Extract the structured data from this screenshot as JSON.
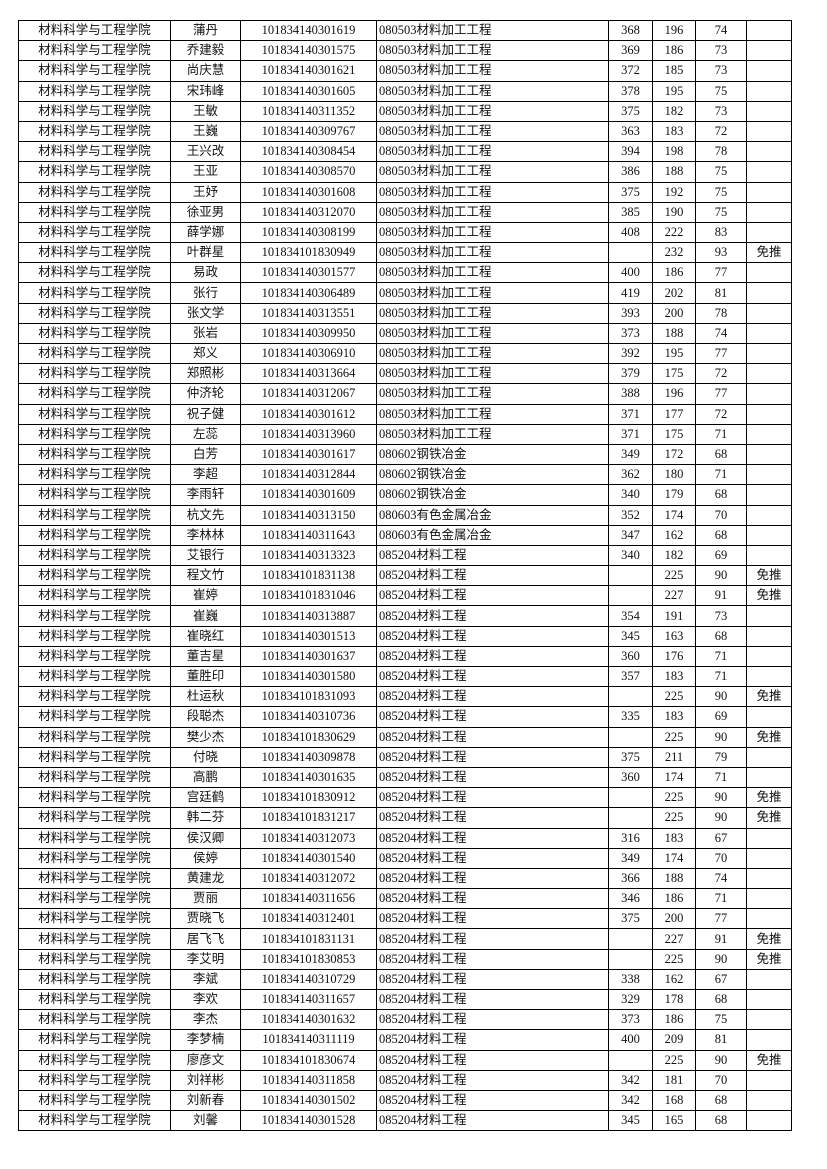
{
  "table": {
    "rows": [
      [
        "材料科学与工程学院",
        "蒲丹",
        "101834140301619",
        "080503材料加工工程",
        "368",
        "196",
        "74",
        ""
      ],
      [
        "材料科学与工程学院",
        "乔建毅",
        "101834140301575",
        "080503材料加工工程",
        "369",
        "186",
        "73",
        ""
      ],
      [
        "材料科学与工程学院",
        "尚庆慧",
        "101834140301621",
        "080503材料加工工程",
        "372",
        "185",
        "73",
        ""
      ],
      [
        "材料科学与工程学院",
        "宋玮峰",
        "101834140301605",
        "080503材料加工工程",
        "378",
        "195",
        "75",
        ""
      ],
      [
        "材料科学与工程学院",
        "王敏",
        "101834140311352",
        "080503材料加工工程",
        "375",
        "182",
        "73",
        ""
      ],
      [
        "材料科学与工程学院",
        "王巍",
        "101834140309767",
        "080503材料加工工程",
        "363",
        "183",
        "72",
        ""
      ],
      [
        "材料科学与工程学院",
        "王兴改",
        "101834140308454",
        "080503材料加工工程",
        "394",
        "198",
        "78",
        ""
      ],
      [
        "材料科学与工程学院",
        "王亚",
        "101834140308570",
        "080503材料加工工程",
        "386",
        "188",
        "75",
        ""
      ],
      [
        "材料科学与工程学院",
        "王妤",
        "101834140301608",
        "080503材料加工工程",
        "375",
        "192",
        "75",
        ""
      ],
      [
        "材料科学与工程学院",
        "徐亚男",
        "101834140312070",
        "080503材料加工工程",
        "385",
        "190",
        "75",
        ""
      ],
      [
        "材料科学与工程学院",
        "薛学娜",
        "101834140308199",
        "080503材料加工工程",
        "408",
        "222",
        "83",
        ""
      ],
      [
        "材料科学与工程学院",
        "叶群星",
        "101834101830949",
        "080503材料加工工程",
        "",
        "232",
        "93",
        "免推"
      ],
      [
        "材料科学与工程学院",
        "易政",
        "101834140301577",
        "080503材料加工工程",
        "400",
        "186",
        "77",
        ""
      ],
      [
        "材料科学与工程学院",
        "张行",
        "101834140306489",
        "080503材料加工工程",
        "419",
        "202",
        "81",
        ""
      ],
      [
        "材料科学与工程学院",
        "张文学",
        "101834140313551",
        "080503材料加工工程",
        "393",
        "200",
        "78",
        ""
      ],
      [
        "材料科学与工程学院",
        "张岩",
        "101834140309950",
        "080503材料加工工程",
        "373",
        "188",
        "74",
        ""
      ],
      [
        "材料科学与工程学院",
        "郑义",
        "101834140306910",
        "080503材料加工工程",
        "392",
        "195",
        "77",
        ""
      ],
      [
        "材料科学与工程学院",
        "郑照彬",
        "101834140313664",
        "080503材料加工工程",
        "379",
        "175",
        "72",
        ""
      ],
      [
        "材料科学与工程学院",
        "仲济轮",
        "101834140312067",
        "080503材料加工工程",
        "388",
        "196",
        "77",
        ""
      ],
      [
        "材料科学与工程学院",
        "祝子健",
        "101834140301612",
        "080503材料加工工程",
        "371",
        "177",
        "72",
        ""
      ],
      [
        "材料科学与工程学院",
        "左蕊",
        "101834140313960",
        "080503材料加工工程",
        "371",
        "175",
        "71",
        ""
      ],
      [
        "材料科学与工程学院",
        "白芳",
        "101834140301617",
        "080602钢铁冶金",
        "349",
        "172",
        "68",
        ""
      ],
      [
        "材料科学与工程学院",
        "李超",
        "101834140312844",
        "080602钢铁冶金",
        "362",
        "180",
        "71",
        ""
      ],
      [
        "材料科学与工程学院",
        "李雨轩",
        "101834140301609",
        "080602钢铁冶金",
        "340",
        "179",
        "68",
        ""
      ],
      [
        "材料科学与工程学院",
        "杭文先",
        "101834140313150",
        "080603有色金属冶金",
        "352",
        "174",
        "70",
        ""
      ],
      [
        "材料科学与工程学院",
        "李林林",
        "101834140311643",
        "080603有色金属冶金",
        "347",
        "162",
        "68",
        ""
      ],
      [
        "材料科学与工程学院",
        "艾银行",
        "101834140313323",
        "085204材料工程",
        "340",
        "182",
        "69",
        ""
      ],
      [
        "材料科学与工程学院",
        "程文竹",
        "101834101831138",
        "085204材料工程",
        "",
        "225",
        "90",
        "免推"
      ],
      [
        "材料科学与工程学院",
        "崔婷",
        "101834101831046",
        "085204材料工程",
        "",
        "227",
        "91",
        "免推"
      ],
      [
        "材料科学与工程学院",
        "崔巍",
        "101834140313887",
        "085204材料工程",
        "354",
        "191",
        "73",
        ""
      ],
      [
        "材料科学与工程学院",
        "崔晓红",
        "101834140301513",
        "085204材料工程",
        "345",
        "163",
        "68",
        ""
      ],
      [
        "材料科学与工程学院",
        "董吉星",
        "101834140301637",
        "085204材料工程",
        "360",
        "176",
        "71",
        ""
      ],
      [
        "材料科学与工程学院",
        "董胜印",
        "101834140301580",
        "085204材料工程",
        "357",
        "183",
        "71",
        ""
      ],
      [
        "材料科学与工程学院",
        "杜运秋",
        "101834101831093",
        "085204材料工程",
        "",
        "225",
        "90",
        "免推"
      ],
      [
        "材料科学与工程学院",
        "段聪杰",
        "101834140310736",
        "085204材料工程",
        "335",
        "183",
        "69",
        ""
      ],
      [
        "材料科学与工程学院",
        "樊少杰",
        "101834101830629",
        "085204材料工程",
        "",
        "225",
        "90",
        "免推"
      ],
      [
        "材料科学与工程学院",
        "付晓",
        "101834140309878",
        "085204材料工程",
        "375",
        "211",
        "79",
        ""
      ],
      [
        "材料科学与工程学院",
        "高鹏",
        "101834140301635",
        "085204材料工程",
        "360",
        "174",
        "71",
        ""
      ],
      [
        "材料科学与工程学院",
        "宫廷鹤",
        "101834101830912",
        "085204材料工程",
        "",
        "225",
        "90",
        "免推"
      ],
      [
        "材料科学与工程学院",
        "韩二芬",
        "101834101831217",
        "085204材料工程",
        "",
        "225",
        "90",
        "免推"
      ],
      [
        "材料科学与工程学院",
        "侯汉卿",
        "101834140312073",
        "085204材料工程",
        "316",
        "183",
        "67",
        ""
      ],
      [
        "材料科学与工程学院",
        "侯婷",
        "101834140301540",
        "085204材料工程",
        "349",
        "174",
        "70",
        ""
      ],
      [
        "材料科学与工程学院",
        "黄建龙",
        "101834140312072",
        "085204材料工程",
        "366",
        "188",
        "74",
        ""
      ],
      [
        "材料科学与工程学院",
        "贾丽",
        "101834140311656",
        "085204材料工程",
        "346",
        "186",
        "71",
        ""
      ],
      [
        "材料科学与工程学院",
        "贾晓飞",
        "101834140312401",
        "085204材料工程",
        "375",
        "200",
        "77",
        ""
      ],
      [
        "材料科学与工程学院",
        "居飞飞",
        "101834101831131",
        "085204材料工程",
        "",
        "227",
        "91",
        "免推"
      ],
      [
        "材料科学与工程学院",
        "李艾明",
        "101834101830853",
        "085204材料工程",
        "",
        "225",
        "90",
        "免推"
      ],
      [
        "材料科学与工程学院",
        "李斌",
        "101834140310729",
        "085204材料工程",
        "338",
        "162",
        "67",
        ""
      ],
      [
        "材料科学与工程学院",
        "李欢",
        "101834140311657",
        "085204材料工程",
        "329",
        "178",
        "68",
        ""
      ],
      [
        "材料科学与工程学院",
        "李杰",
        "101834140301632",
        "085204材料工程",
        "373",
        "186",
        "75",
        ""
      ],
      [
        "材料科学与工程学院",
        "李梦楠",
        "101834140311119",
        "085204材料工程",
        "400",
        "209",
        "81",
        ""
      ],
      [
        "材料科学与工程学院",
        "廖彦文",
        "101834101830674",
        "085204材料工程",
        "",
        "225",
        "90",
        "免推"
      ],
      [
        "材料科学与工程学院",
        "刘祥彬",
        "101834140311858",
        "085204材料工程",
        "342",
        "181",
        "70",
        ""
      ],
      [
        "材料科学与工程学院",
        "刘新春",
        "101834140301502",
        "085204材料工程",
        "342",
        "168",
        "68",
        ""
      ],
      [
        "材料科学与工程学院",
        "刘馨",
        "101834140301528",
        "085204材料工程",
        "345",
        "165",
        "68",
        ""
      ]
    ]
  }
}
